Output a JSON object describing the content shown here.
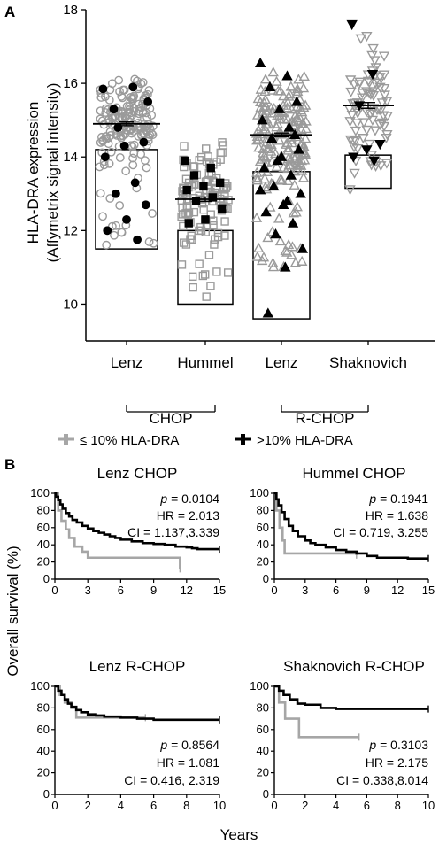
{
  "panel_a": {
    "letter": "A",
    "ylabel_line1": "HLA-DRA expression",
    "ylabel_line2": "(Affymetrix signal intensity)",
    "group_chop": "CHOP",
    "group_rchop": "R-CHOP"
  },
  "panel_b": {
    "letter": "B",
    "legend_low": "≤ 10% HLA-DRA",
    "legend_high": ">10% HLA-DRA",
    "ylabel": "Overall survival (%)",
    "xlabel": "Years"
  },
  "colors": {
    "low_series": "#a6a6a6",
    "high_series": "#000000",
    "grey_marker": "#9a9a9a"
  },
  "chart_data": [
    {
      "type": "scatter",
      "chart_kind": "dot plot with box overlay",
      "ylim": [
        9,
        18
      ],
      "yticks": [
        "10",
        "12",
        "14",
        "16",
        "18"
      ],
      "categories": [
        "Lenz",
        "Hummel",
        "Lenz",
        "Shaknovich"
      ],
      "groups": [
        {
          "label": "CHOP",
          "categories": [
            0,
            1
          ]
        },
        {
          "label": "R-CHOP",
          "categories": [
            2,
            3
          ]
        }
      ],
      "markers": [
        "circle",
        "square",
        "triangle-up",
        "triangle-down"
      ],
      "series": [
        {
          "category": "Lenz",
          "box_low": 11.5,
          "box_high": 14.2,
          "mean": 14.9,
          "sem": 0.05,
          "n_open": 170,
          "open_range": [
            11.6,
            16.2
          ],
          "filled_points": [
            15.85,
            15.9,
            15.3,
            14.4,
            14.3,
            14.0,
            13.3,
            13.0,
            12.7,
            12.3,
            12.0,
            11.75,
            14.8,
            15.5
          ]
        },
        {
          "category": "Hummel",
          "box_low": 10.0,
          "box_high": 12.0,
          "mean": 12.85,
          "sem": 0.06,
          "n_open": 120,
          "open_range": [
            10.2,
            14.5
          ],
          "filled_points": [
            13.9,
            13.7,
            13.5,
            13.3,
            13.2,
            13.1,
            12.9,
            12.8,
            12.6,
            12.3,
            12.2
          ]
        },
        {
          "category": "Lenz",
          "box_low": 9.6,
          "box_high": 13.6,
          "mean": 14.6,
          "sem": 0.05,
          "n_open": 190,
          "open_range": [
            11.0,
            16.4
          ],
          "filled_points": [
            16.55,
            16.2,
            15.9,
            15.5,
            15.3,
            15.0,
            14.8,
            14.5,
            14.2,
            14.0,
            13.7,
            13.5,
            13.2,
            13.0,
            12.7,
            12.5,
            12.2,
            11.9,
            11.5,
            11.0,
            9.75,
            14.6,
            13.9,
            13.1,
            12.8
          ]
        },
        {
          "category": "Shaknovich",
          "box_low": 13.15,
          "box_high": 14.05,
          "mean": 15.4,
          "sem": 0.08,
          "n_open": 80,
          "open_range": [
            13.1,
            17.4
          ],
          "filled_points": [
            17.6,
            16.25,
            15.4,
            14.35,
            14.2,
            14.0,
            13.9
          ]
        }
      ]
    },
    {
      "type": "line",
      "chart_kind": "kaplan-meier",
      "title": "Lenz CHOP",
      "stats": [
        "p = 0.0104",
        "HR = 2.013",
        "CI = 1.137,3.339"
      ],
      "xlim": [
        0,
        15
      ],
      "ylim": [
        0,
        100
      ],
      "xticks": [
        "0",
        "3",
        "6",
        "9",
        "12",
        "15"
      ],
      "yticks": [
        "0",
        "20",
        "40",
        "60",
        "80",
        "100"
      ],
      "series": [
        {
          "key": "high",
          "x": [
            0,
            0.1,
            0.3,
            0.5,
            0.7,
            1.0,
            1.3,
            1.6,
            2.0,
            2.5,
            3.0,
            3.5,
            4.0,
            4.5,
            5.0,
            5.5,
            6.0,
            7.0,
            8.0,
            9.0,
            10.0,
            11.0,
            12.0,
            12.5,
            13.0,
            15.0
          ],
          "y": [
            100,
            96,
            92,
            87,
            82,
            77,
            73,
            69,
            66,
            62,
            59,
            56,
            54,
            52,
            50,
            48,
            46,
            44,
            42,
            41,
            40,
            38,
            37,
            36,
            35,
            35
          ]
        },
        {
          "key": "low",
          "x": [
            0,
            0.3,
            0.6,
            1.0,
            1.3,
            1.8,
            2.5,
            3.0,
            11.0,
            11.4
          ],
          "y": [
            100,
            80,
            68,
            58,
            48,
            38,
            32,
            25,
            25,
            12
          ]
        }
      ]
    },
    {
      "type": "line",
      "chart_kind": "kaplan-meier",
      "title": "Hummel CHOP",
      "stats": [
        "p = 0.1941",
        "HR = 1.638",
        "CI = 0.719, 3.255"
      ],
      "xlim": [
        0,
        15
      ],
      "ylim": [
        0,
        100
      ],
      "xticks": [
        "0",
        "3",
        "6",
        "9",
        "12",
        "15"
      ],
      "yticks": [
        "0",
        "20",
        "40",
        "60",
        "80",
        "100"
      ],
      "series": [
        {
          "key": "high",
          "x": [
            0,
            0.2,
            0.4,
            0.7,
            1.0,
            1.4,
            1.8,
            2.3,
            3.0,
            3.5,
            4.0,
            5.0,
            6.0,
            7.0,
            8.0,
            9.0,
            10.0,
            13.0,
            15.0
          ],
          "y": [
            100,
            93,
            86,
            78,
            70,
            62,
            56,
            50,
            45,
            42,
            40,
            37,
            34,
            32,
            30,
            27,
            25,
            24,
            24
          ]
        },
        {
          "key": "low",
          "x": [
            0,
            0.2,
            0.5,
            0.8,
            1.0,
            4.0,
            7.0,
            8.0
          ],
          "y": [
            100,
            80,
            60,
            45,
            30,
            30,
            30,
            28
          ]
        }
      ]
    },
    {
      "type": "line",
      "chart_kind": "kaplan-meier",
      "title": "Lenz R-CHOP",
      "stats": [
        "p = 0.8564",
        "HR = 1.081",
        "CI = 0.416, 2.319"
      ],
      "xlim": [
        0,
        10
      ],
      "ylim": [
        0,
        100
      ],
      "xticks": [
        "0",
        "2",
        "4",
        "6",
        "8",
        "10"
      ],
      "yticks": [
        "0",
        "20",
        "40",
        "60",
        "80",
        "100"
      ],
      "series": [
        {
          "key": "high",
          "x": [
            0,
            0.2,
            0.4,
            0.6,
            0.8,
            1.0,
            1.3,
            1.6,
            2.0,
            2.5,
            3.0,
            4.0,
            5.0,
            6.0,
            10.0
          ],
          "y": [
            100,
            96,
            92,
            88,
            84,
            81,
            78,
            76,
            74,
            73,
            72,
            71,
            70,
            69,
            69
          ]
        },
        {
          "key": "low",
          "x": [
            0,
            0.3,
            0.6,
            1.0,
            1.3,
            2.0,
            5.0,
            5.5
          ],
          "y": [
            100,
            92,
            85,
            80,
            71,
            71,
            71,
            71
          ]
        }
      ]
    },
    {
      "type": "line",
      "chart_kind": "kaplan-meier",
      "title": "Shaknovich R-CHOP",
      "stats": [
        "p = 0.3103",
        "HR = 2.175",
        "CI = 0.338,8.014"
      ],
      "xlim": [
        0,
        10
      ],
      "ylim": [
        0,
        100
      ],
      "xticks": [
        "0",
        "2",
        "4",
        "6",
        "8",
        "10"
      ],
      "yticks": [
        "0",
        "20",
        "40",
        "60",
        "80",
        "100"
      ],
      "series": [
        {
          "key": "high",
          "x": [
            0,
            0.3,
            0.6,
            1.0,
            1.5,
            2.0,
            3.0,
            4.0,
            10.0
          ],
          "y": [
            100,
            96,
            92,
            88,
            84,
            83,
            80,
            79,
            79
          ]
        },
        {
          "key": "low",
          "x": [
            0,
            0.3,
            0.7,
            1.3,
            1.6,
            5.5
          ],
          "y": [
            100,
            85,
            70,
            70,
            53,
            53
          ]
        }
      ]
    }
  ]
}
